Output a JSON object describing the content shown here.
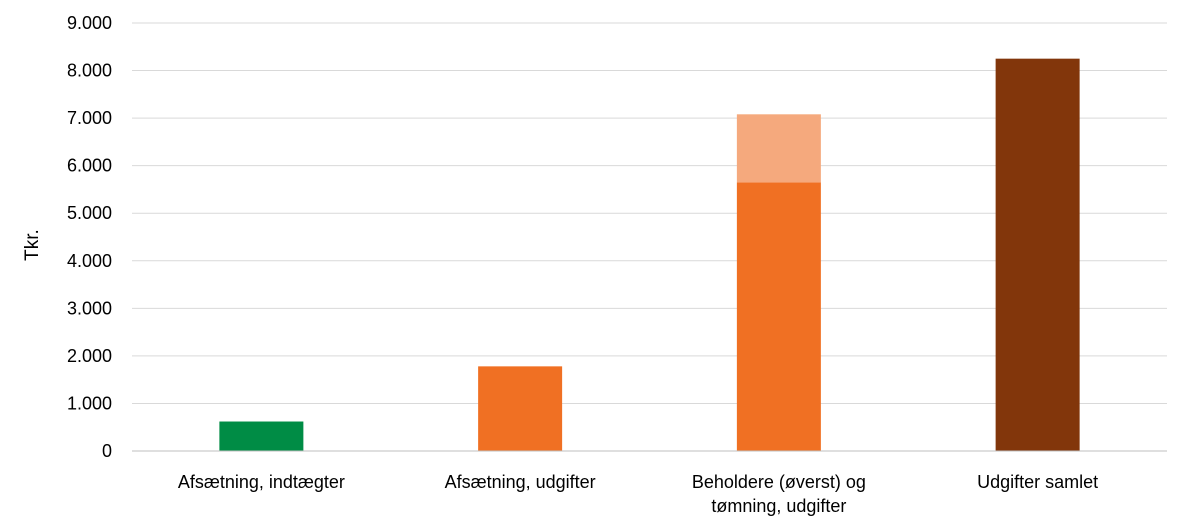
{
  "chart_data": {
    "type": "bar",
    "stacked": true,
    "title": "",
    "xlabel": "",
    "ylabel": "Tkr.",
    "ylim": [
      0,
      9000
    ],
    "yticks": [
      0,
      1000,
      2000,
      3000,
      4000,
      5000,
      6000,
      7000,
      8000,
      9000
    ],
    "ytick_labels": [
      "0",
      "1.000",
      "2.000",
      "3.000",
      "4.000",
      "5.000",
      "6.000",
      "7.000",
      "8.000",
      "9.000"
    ],
    "grid": true,
    "legend": "none",
    "categories": [
      [
        "Afsætning, indtægter"
      ],
      [
        "Afsætning, udgifter"
      ],
      [
        "Beholdere (øverst) og",
        "tømning, udgifter"
      ],
      [
        "Udgifter samlet"
      ]
    ],
    "bars": [
      {
        "segments": [
          {
            "value": 620,
            "color": "#008C45"
          }
        ]
      },
      {
        "segments": [
          {
            "value": 1780,
            "color": "#F07023"
          }
        ]
      },
      {
        "segments": [
          {
            "value": 5650,
            "color": "#F07023"
          },
          {
            "value": 1430,
            "color": "#F5A97D"
          }
        ]
      },
      {
        "segments": [
          {
            "value": 8250,
            "color": "#82360B"
          }
        ]
      }
    ],
    "gridline_color": "#D9D9D9",
    "axis_color": "#BFBFBF"
  }
}
